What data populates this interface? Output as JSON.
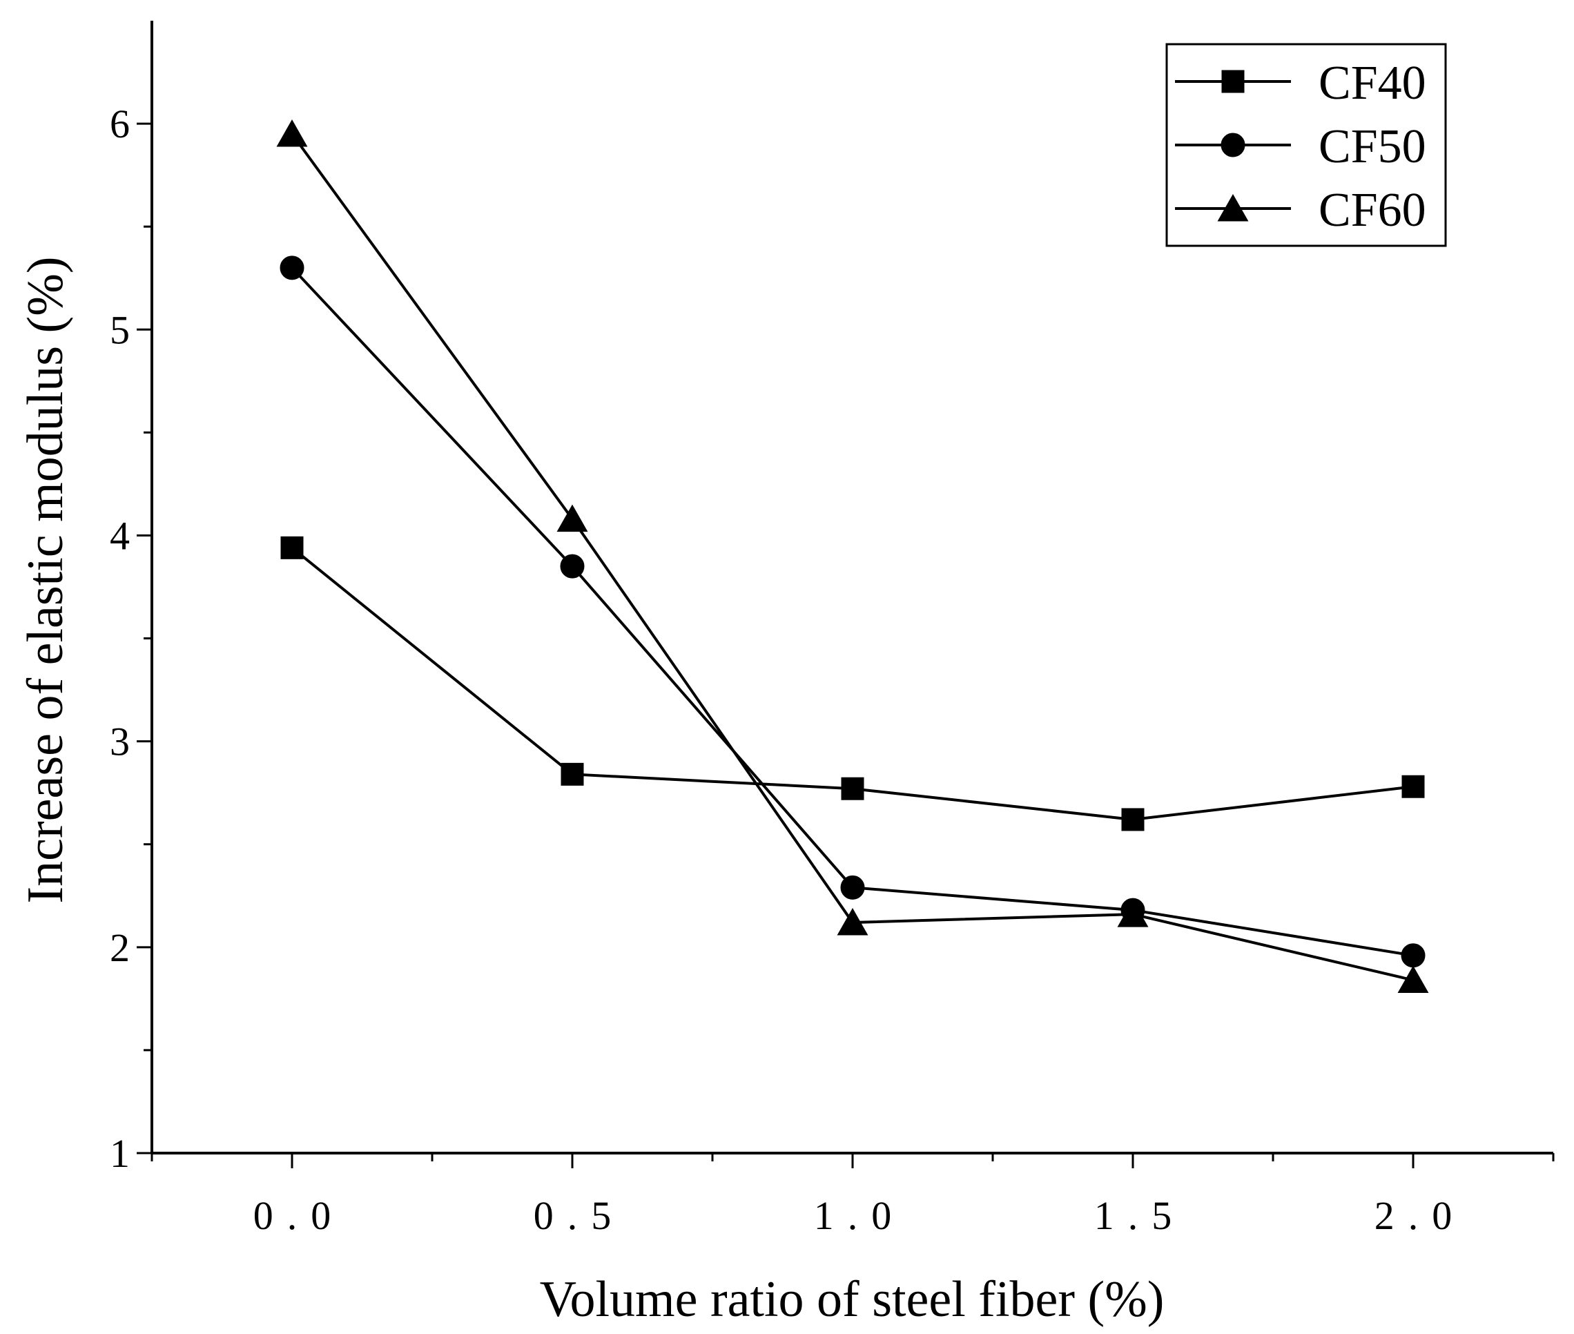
{
  "chart_data": {
    "type": "line",
    "title": "",
    "xlabel": "Volume ratio of steel fiber (%)",
    "ylabel": "Increase of elastic modulus (%)",
    "x": [
      0.0,
      0.5,
      1.0,
      1.5,
      2.0
    ],
    "x_tick_labels": [
      "0.0",
      "0.5",
      "1.0",
      "1.5",
      "2.0"
    ],
    "y_tick_values": [
      1,
      2,
      3,
      4,
      5,
      6
    ],
    "y_tick_labels": [
      "1",
      "2",
      "3",
      "4",
      "5",
      "6"
    ],
    "xlim": [
      -0.25,
      2.25
    ],
    "ylim": [
      1,
      6.5
    ],
    "grid": false,
    "legend_position": "top-right",
    "series": [
      {
        "name": "CF40",
        "marker": "square",
        "values": [
          3.94,
          2.84,
          2.77,
          2.62,
          2.78
        ]
      },
      {
        "name": "CF50",
        "marker": "circle",
        "values": [
          5.3,
          3.85,
          2.29,
          2.18,
          1.96
        ]
      },
      {
        "name": "CF60",
        "marker": "triangle",
        "values": [
          5.95,
          4.08,
          2.12,
          2.16,
          1.84
        ]
      }
    ],
    "colors": {
      "line": "#000000",
      "marker": "#000000",
      "background": "#ffffff"
    }
  }
}
